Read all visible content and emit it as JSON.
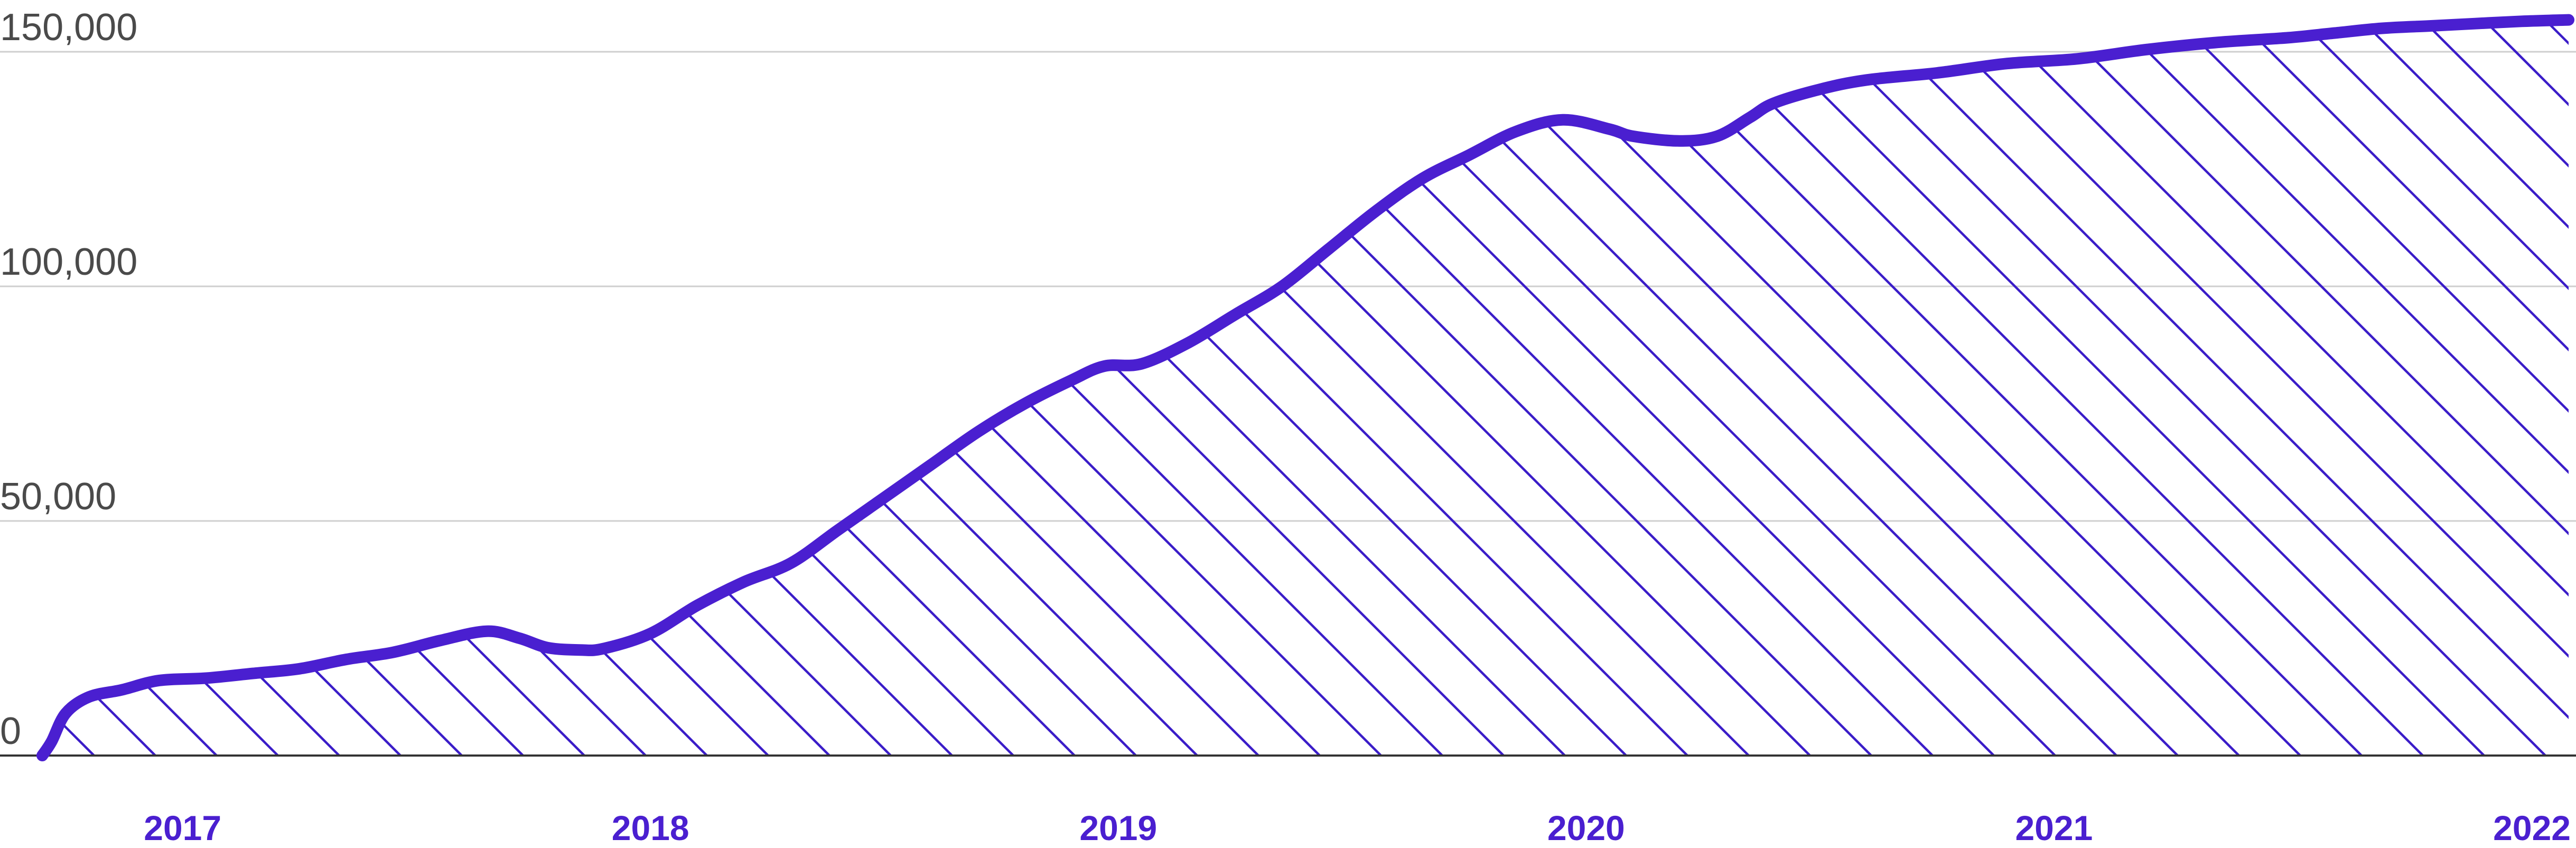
{
  "chart_data": {
    "type": "area",
    "title": "",
    "xlabel": "",
    "ylabel": "",
    "ylim": [
      0,
      150000
    ],
    "xlim": [
      2016.7,
      2022.1
    ],
    "yticks": [
      {
        "value": 0,
        "label": "0"
      },
      {
        "value": 50000,
        "label": "50,000"
      },
      {
        "value": 100000,
        "label": "100,000"
      },
      {
        "value": 150000,
        "label": "150,000"
      }
    ],
    "xticks": [
      {
        "value": 2017.0,
        "label": "2017"
      },
      {
        "value": 2018.0,
        "label": "2018"
      },
      {
        "value": 2019.0,
        "label": "2019"
      },
      {
        "value": 2020.0,
        "label": "2020"
      },
      {
        "value": 2021.0,
        "label": "2021"
      },
      {
        "value": 2022.0,
        "label": "2022"
      }
    ],
    "grid": true,
    "fill": "diagonal-hatch",
    "line_color": "#4a1fd0",
    "hatch_color": "#3a1cc8",
    "series": [
      {
        "x": [
          2016.7,
          2016.72,
          2016.75,
          2016.8,
          2016.87,
          2016.95,
          2017.05,
          2017.15,
          2017.25,
          2017.35,
          2017.45,
          2017.55,
          2017.65,
          2017.72,
          2017.78,
          2017.85,
          2017.9,
          2018.0,
          2018.1,
          2018.2,
          2018.3,
          2018.4,
          2018.5,
          2018.6,
          2018.7,
          2018.8,
          2018.9,
          2018.97,
          2019.05,
          2019.15,
          2019.25,
          2019.35,
          2019.45,
          2019.55,
          2019.65,
          2019.75,
          2019.85,
          2019.95,
          2020.05,
          2020.1,
          2020.2,
          2020.28,
          2020.35,
          2020.4,
          2020.5,
          2020.6,
          2020.75,
          2020.9,
          2021.05,
          2021.2,
          2021.35,
          2021.5,
          2021.6,
          2021.7,
          2021.8,
          2021.9,
          2022.0,
          2022.1
        ],
        "y": [
          0,
          3000,
          9000,
          12500,
          14000,
          16000,
          16500,
          17500,
          18500,
          20500,
          22000,
          24500,
          26500,
          25000,
          23000,
          22500,
          22800,
          26000,
          32000,
          37000,
          41000,
          48000,
          55000,
          62000,
          69000,
          75000,
          80000,
          83000,
          83500,
          88000,
          94000,
          100000,
          108000,
          116000,
          123000,
          128000,
          133000,
          135500,
          133500,
          132000,
          131000,
          132000,
          136000,
          139000,
          142000,
          144000,
          145500,
          147500,
          148500,
          150500,
          152000,
          153000,
          154000,
          155000,
          155500,
          156000,
          156500,
          156800
        ]
      }
    ]
  }
}
